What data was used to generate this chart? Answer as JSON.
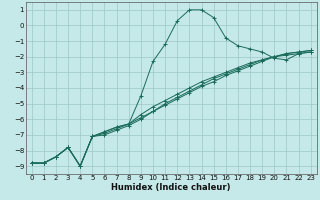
{
  "xlabel": "Humidex (Indice chaleur)",
  "bg_color": "#c5e8e8",
  "grid_color": "#9dc8c8",
  "line_color": "#1a6b5a",
  "xlim": [
    -0.5,
    23.5
  ],
  "ylim": [
    -9.5,
    1.5
  ],
  "xticks": [
    0,
    1,
    2,
    3,
    4,
    5,
    6,
    7,
    8,
    9,
    10,
    11,
    12,
    13,
    14,
    15,
    16,
    17,
    18,
    19,
    20,
    21,
    22,
    23
  ],
  "yticks": [
    1,
    0,
    -1,
    -2,
    -3,
    -4,
    -5,
    -6,
    -7,
    -8,
    -9
  ],
  "series": [
    {
      "x": [
        0,
        1,
        2,
        3,
        4,
        5,
        6,
        7,
        8,
        9,
        10,
        11,
        12,
        13,
        14,
        15,
        16,
        17,
        18,
        19,
        20,
        21,
        22,
        23
      ],
      "y": [
        -8.8,
        -8.8,
        -8.4,
        -7.8,
        -9.0,
        -7.1,
        -6.8,
        -6.5,
        -6.3,
        -4.5,
        -2.3,
        -1.2,
        0.3,
        1.0,
        1.0,
        0.5,
        -0.8,
        -1.3,
        -1.5,
        -1.7,
        -2.1,
        -2.2,
        -1.8,
        -1.7
      ]
    },
    {
      "x": [
        0,
        1,
        2,
        3,
        4,
        5,
        6,
        7,
        8,
        9,
        10,
        11,
        12,
        13,
        14,
        15,
        16,
        17,
        18,
        19,
        20,
        21,
        22,
        23
      ],
      "y": [
        -8.8,
        -8.8,
        -8.4,
        -7.8,
        -9.0,
        -7.1,
        -6.8,
        -6.5,
        -6.3,
        -5.7,
        -5.2,
        -4.8,
        -4.4,
        -4.0,
        -3.6,
        -3.3,
        -3.0,
        -2.7,
        -2.4,
        -2.2,
        -2.0,
        -1.9,
        -1.8,
        -1.7
      ]
    },
    {
      "x": [
        0,
        1,
        2,
        3,
        4,
        5,
        6,
        7,
        8,
        9,
        10,
        11,
        12,
        13,
        14,
        15,
        16,
        17,
        18,
        19,
        20,
        21,
        22,
        23
      ],
      "y": [
        -8.8,
        -8.8,
        -8.4,
        -7.8,
        -9.0,
        -7.1,
        -6.9,
        -6.6,
        -6.3,
        -5.9,
        -5.5,
        -5.1,
        -4.7,
        -4.3,
        -3.9,
        -3.6,
        -3.2,
        -2.9,
        -2.6,
        -2.3,
        -2.0,
        -1.8,
        -1.7,
        -1.6
      ]
    },
    {
      "x": [
        0,
        1,
        2,
        3,
        4,
        5,
        6,
        7,
        8,
        9,
        10,
        11,
        12,
        13,
        14,
        15,
        16,
        17,
        18,
        19,
        20,
        21,
        22,
        23
      ],
      "y": [
        -8.8,
        -8.8,
        -8.4,
        -7.8,
        -9.0,
        -7.1,
        -7.0,
        -6.7,
        -6.4,
        -6.0,
        -5.5,
        -5.0,
        -4.6,
        -4.2,
        -3.8,
        -3.4,
        -3.1,
        -2.8,
        -2.5,
        -2.2,
        -2.0,
        -1.8,
        -1.7,
        -1.6
      ]
    }
  ]
}
